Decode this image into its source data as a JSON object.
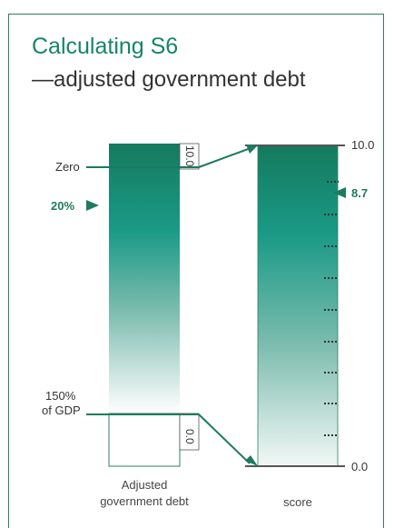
{
  "title": "Calculating S6",
  "subtitle": "—adjusted government debt",
  "left_bar": {
    "top_label": "Zero",
    "marker_label": "20%",
    "bottom_label_line1": "150%",
    "bottom_label_line2": "of GDP",
    "inner_top_value": "10.0",
    "inner_bottom_value": "0.0",
    "caption_line1": "Adjusted",
    "caption_line2": "government debt"
  },
  "right_bar": {
    "top_value": "10.0",
    "marker_value": "8.7",
    "bottom_value": "0.0",
    "caption": "score"
  },
  "colors": {
    "brand_green": "#17846b",
    "dark_green": "#1d7a5e",
    "gradient_top": "#157a5e",
    "gradient_mid": "#1a9a86",
    "gradient_bottom": "#ffffff"
  }
}
